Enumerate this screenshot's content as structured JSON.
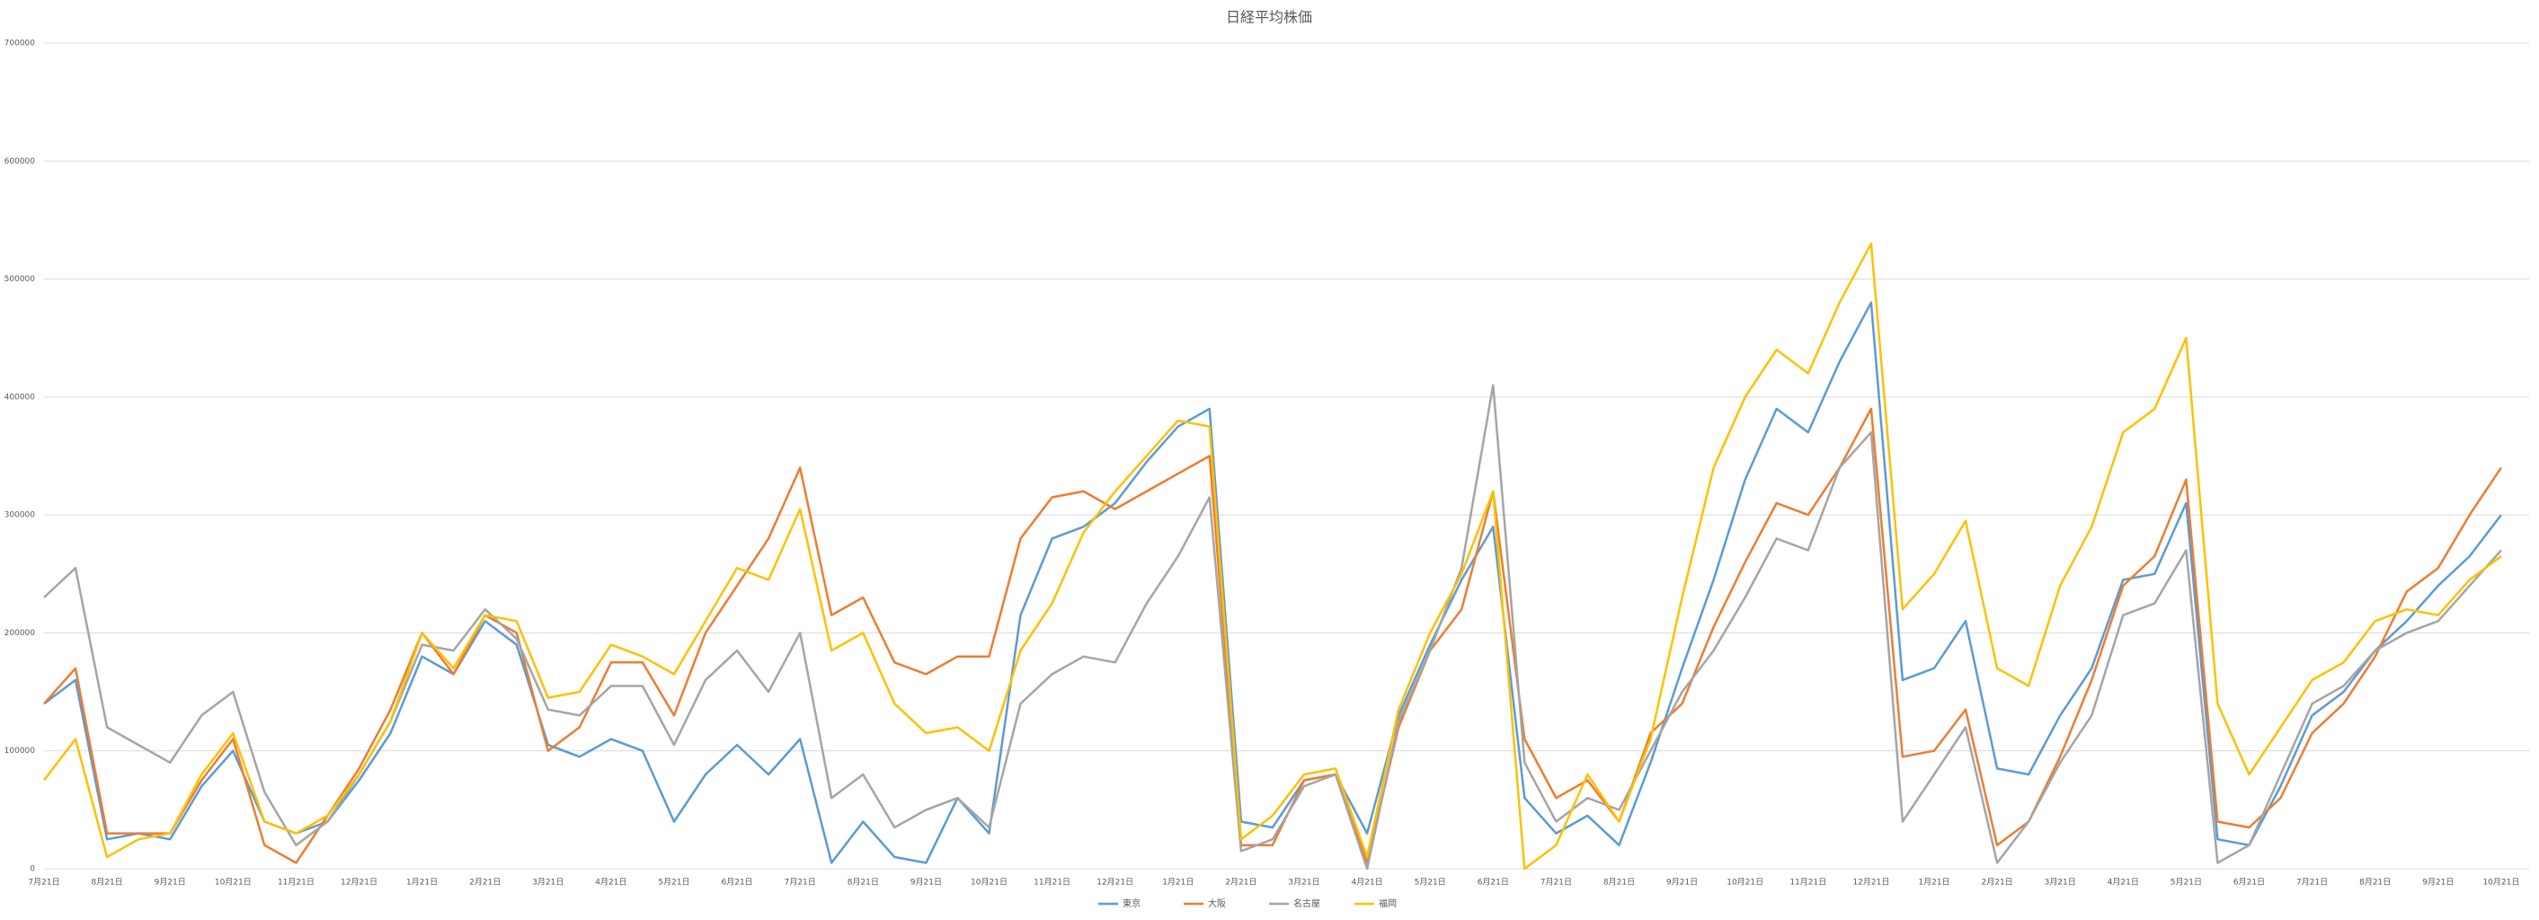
{
  "chart_data": {
    "type": "line",
    "title": "日経平均株価",
    "categories": [
      "7月21日",
      null,
      "8月21日",
      null,
      "9月21日",
      null,
      "10月21日",
      null,
      "11月21日",
      null,
      "12月21日",
      null,
      "1月21日",
      null,
      "2月21日",
      null,
      "3月21日",
      null,
      "4月21日",
      null,
      "5月21日",
      null,
      "6月21日",
      null,
      "7月21日",
      null,
      "8月21日",
      null,
      "9月21日",
      null,
      "10月21日",
      null,
      "11月21日",
      null,
      "12月21日",
      null,
      "1月21日",
      null,
      "2月21日",
      null,
      "3月21日",
      null,
      "4月21日",
      null,
      "5月21日",
      null,
      "6月21日",
      null,
      "7月21日",
      null,
      "8月21日",
      null,
      "9月21日",
      null,
      "10月21日",
      null,
      "11月21日",
      null,
      "12月21日",
      null,
      "1月21日",
      null,
      "2月21日",
      null,
      "3月21日",
      null,
      "4月21日",
      null,
      "5月21日",
      null,
      "6月21日",
      null,
      "7月21日",
      null,
      "8月21日",
      null,
      "9月21日",
      null,
      "10月21日"
    ],
    "series": [
      {
        "name": "東京",
        "color": "#5b9bd5",
        "values": [
          140000,
          160000,
          25000,
          30000,
          25000,
          70000,
          100000,
          40000,
          30000,
          40000,
          75000,
          115000,
          180000,
          165000,
          210000,
          190000,
          105000,
          95000,
          110000,
          100000,
          40000,
          80000,
          105000,
          80000,
          110000,
          5000,
          40000,
          10000,
          5000,
          60000,
          30000,
          215000,
          280000,
          290000,
          310000,
          345000,
          375000,
          390000,
          40000,
          35000,
          75000,
          80000,
          30000,
          130000,
          190000,
          245000,
          290000,
          60000,
          30000,
          45000,
          20000,
          90000,
          170000,
          245000,
          330000,
          390000,
          370000,
          430000,
          480000,
          160000,
          170000,
          210000,
          85000,
          80000,
          130000,
          170000,
          245000,
          250000,
          310000,
          25000,
          20000,
          70000,
          130000,
          150000,
          185000,
          210000,
          240000,
          265000,
          300000
        ]
      },
      {
        "name": "大阪",
        "color": "#ed7d31",
        "values": [
          140000,
          170000,
          30000,
          30000,
          30000,
          75000,
          110000,
          20000,
          5000,
          45000,
          85000,
          135000,
          200000,
          165000,
          215000,
          200000,
          100000,
          120000,
          175000,
          175000,
          130000,
          200000,
          240000,
          280000,
          340000,
          215000,
          230000,
          175000,
          165000,
          180000,
          180000,
          280000,
          315000,
          320000,
          305000,
          320000,
          335000,
          350000,
          20000,
          20000,
          75000,
          80000,
          5000,
          120000,
          185000,
          220000,
          320000,
          110000,
          60000,
          75000,
          40000,
          115000,
          140000,
          205000,
          260000,
          310000,
          300000,
          340000,
          390000,
          95000,
          100000,
          135000,
          20000,
          40000,
          95000,
          160000,
          240000,
          265000,
          330000,
          40000,
          35000,
          60000,
          115000,
          140000,
          180000,
          235000,
          255000,
          300000,
          340000
        ]
      },
      {
        "name": "名古屋",
        "color": "#a5a5a5",
        "values": [
          230000,
          255000,
          120000,
          105000,
          90000,
          130000,
          150000,
          65000,
          20000,
          40000,
          80000,
          125000,
          190000,
          185000,
          220000,
          195000,
          135000,
          130000,
          155000,
          155000,
          105000,
          160000,
          185000,
          150000,
          200000,
          60000,
          80000,
          35000,
          50000,
          60000,
          35000,
          140000,
          165000,
          180000,
          175000,
          225000,
          265000,
          315000,
          15000,
          25000,
          70000,
          80000,
          0,
          125000,
          185000,
          255000,
          410000,
          90000,
          40000,
          60000,
          50000,
          100000,
          150000,
          185000,
          230000,
          280000,
          270000,
          340000,
          370000,
          40000,
          80000,
          120000,
          5000,
          40000,
          90000,
          130000,
          215000,
          225000,
          270000,
          5000,
          20000,
          80000,
          140000,
          155000,
          185000,
          200000,
          210000,
          240000,
          270000
        ]
      },
      {
        "name": "福岡",
        "color": "#ffc000",
        "values": [
          75000,
          110000,
          10000,
          25000,
          30000,
          80000,
          115000,
          40000,
          30000,
          45000,
          80000,
          125000,
          200000,
          170000,
          215000,
          210000,
          145000,
          150000,
          190000,
          180000,
          165000,
          210000,
          255000,
          245000,
          305000,
          185000,
          200000,
          140000,
          115000,
          120000,
          100000,
          185000,
          225000,
          285000,
          320000,
          350000,
          380000,
          375000,
          25000,
          45000,
          80000,
          85000,
          10000,
          135000,
          200000,
          250000,
          320000,
          0,
          20000,
          80000,
          40000,
          110000,
          230000,
          340000,
          400000,
          440000,
          420000,
          480000,
          530000,
          220000,
          250000,
          295000,
          170000,
          155000,
          240000,
          290000,
          370000,
          390000,
          450000,
          140000,
          80000,
          120000,
          160000,
          175000,
          210000,
          220000,
          215000,
          245000,
          265000
        ]
      }
    ],
    "ylim": [
      0,
      700000
    ],
    "yticks": [
      0,
      100000,
      200000,
      300000,
      400000,
      500000,
      600000,
      700000
    ],
    "grid": true,
    "legend": "bottom"
  }
}
